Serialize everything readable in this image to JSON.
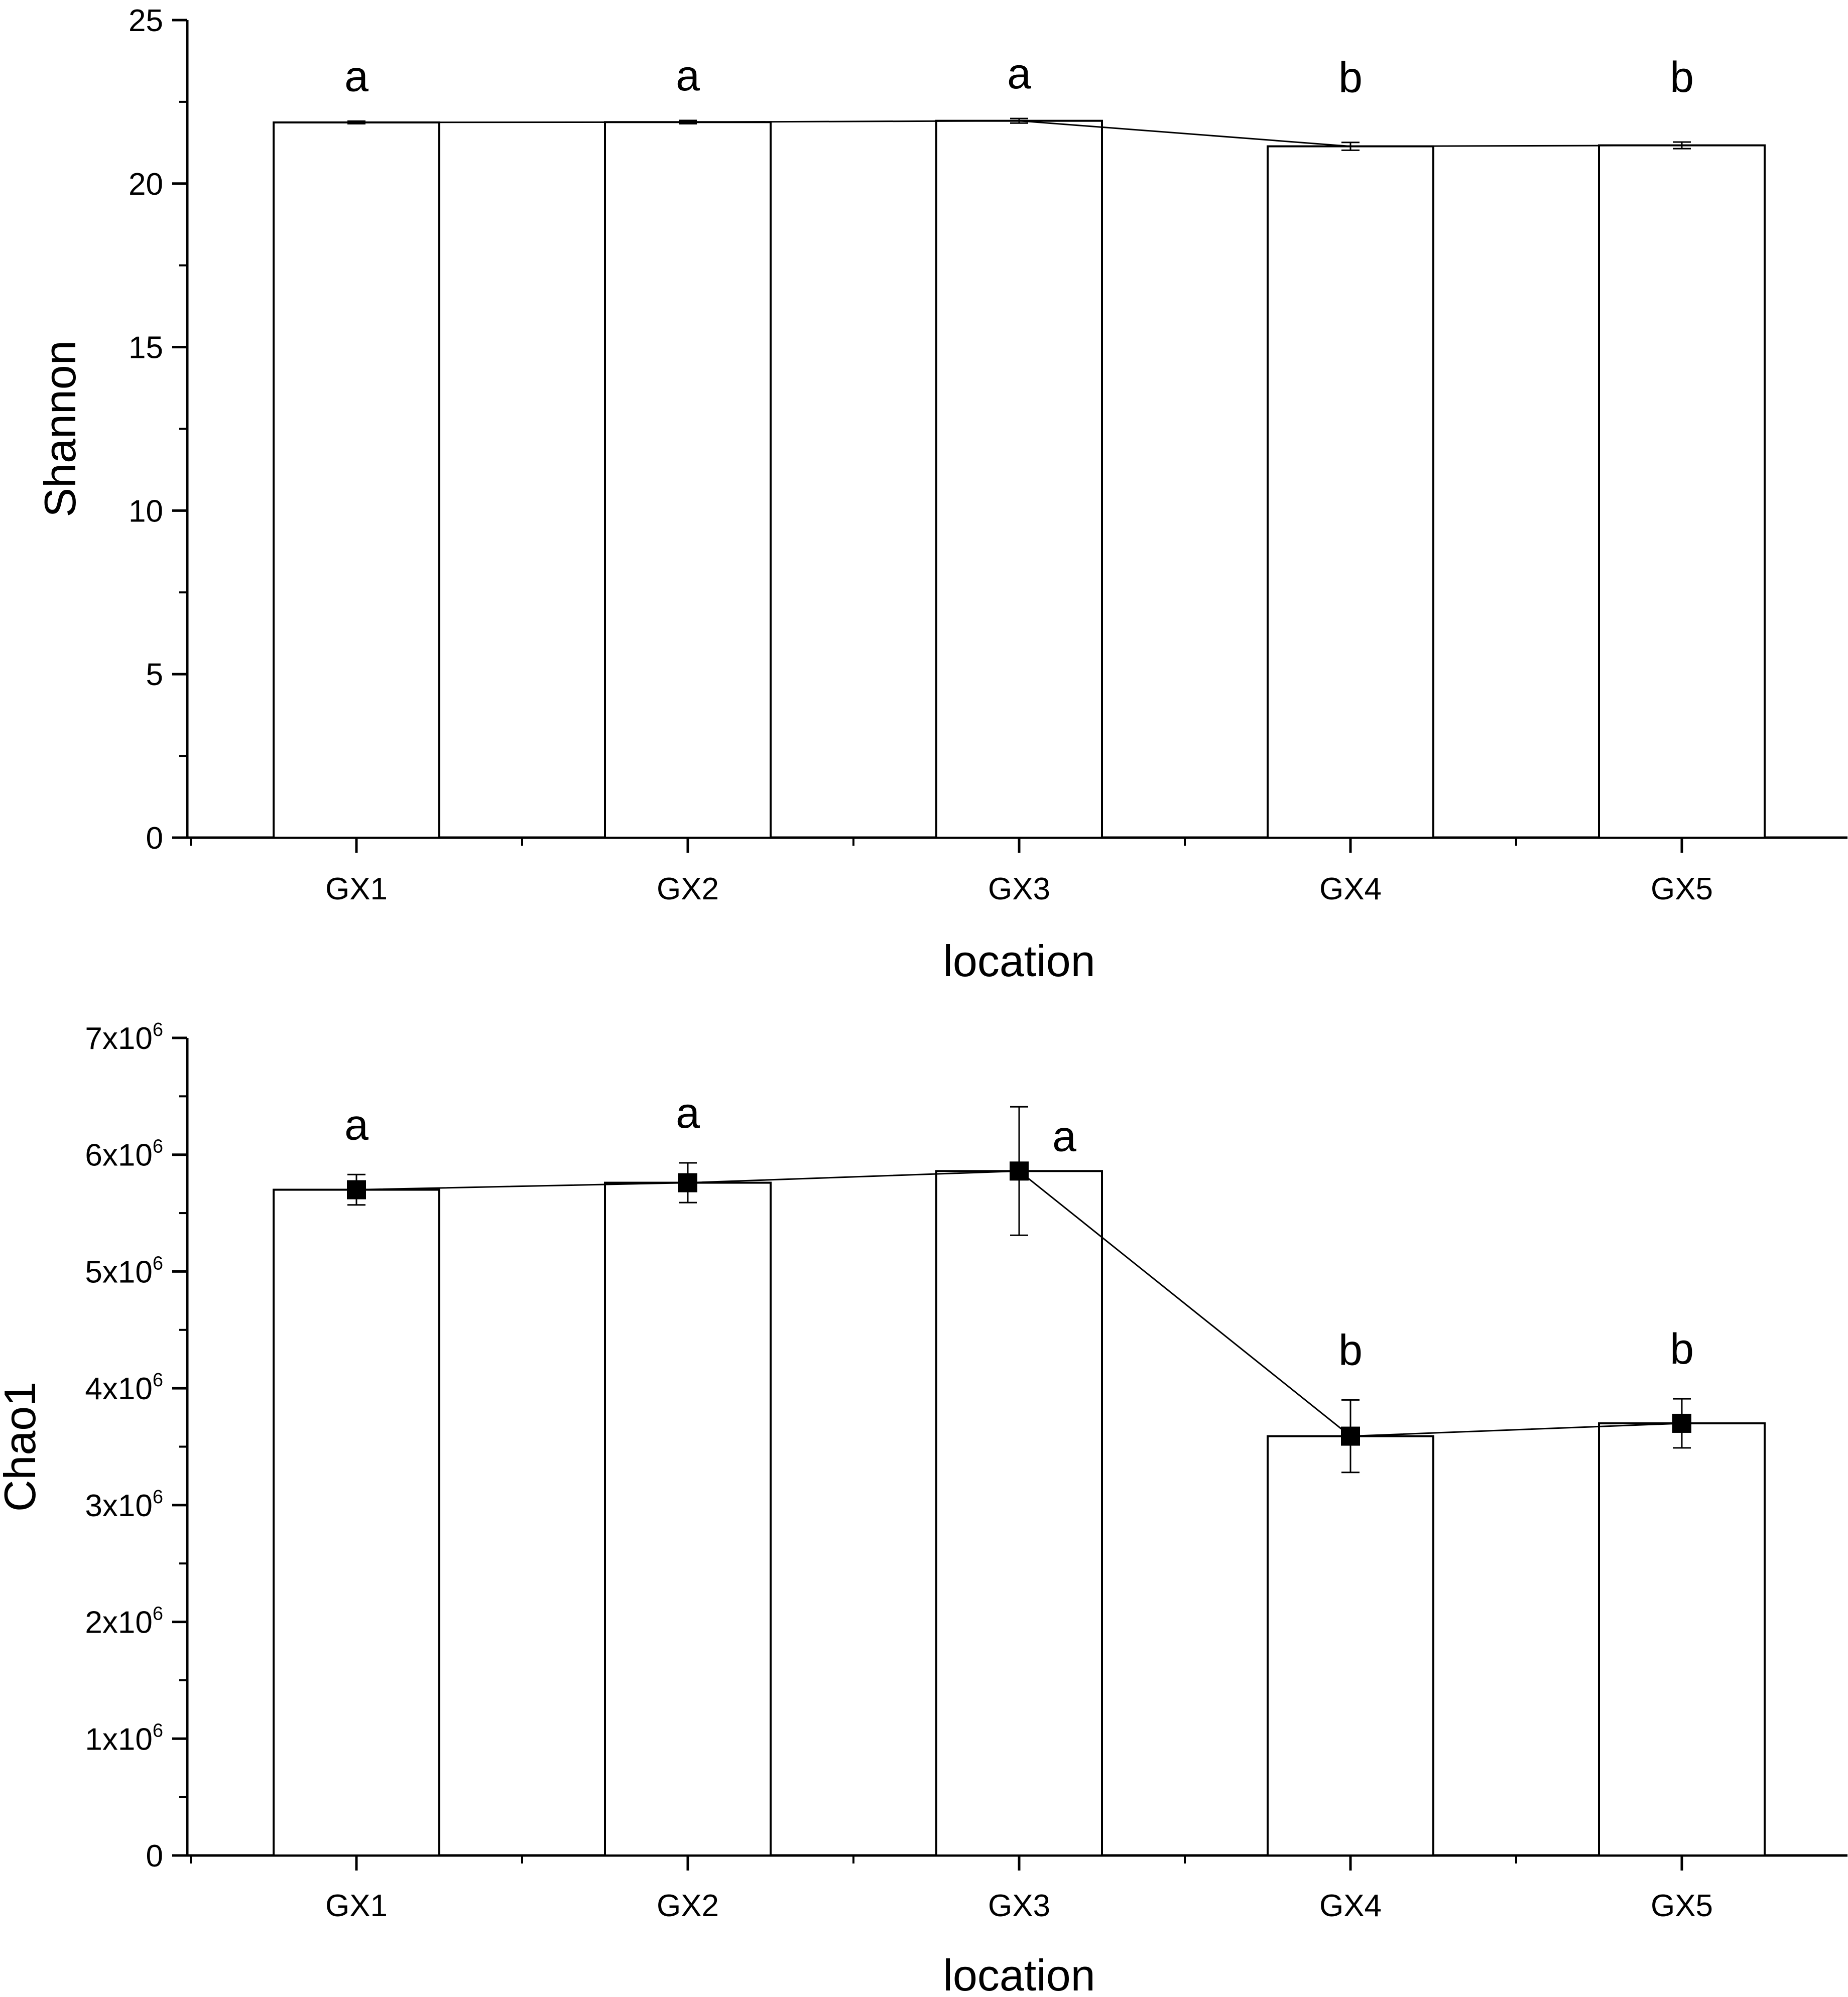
{
  "chart_data": [
    {
      "type": "bar",
      "xlabel": "location",
      "ylabel": "Shannon",
      "ylim": [
        0,
        25
      ],
      "yticks": [
        "0",
        "5",
        "10",
        "15",
        "20",
        "25"
      ],
      "categories": [
        "GX1",
        "GX2",
        "GX3",
        "GX4",
        "GX5"
      ],
      "values": [
        21.87,
        21.88,
        21.92,
        21.14,
        21.17
      ],
      "errors": [
        0.04,
        0.05,
        0.07,
        0.12,
        0.1
      ],
      "overlay_line": true,
      "point_markers": false,
      "significance": [
        "a",
        "a",
        "a",
        "b",
        "b"
      ]
    },
    {
      "type": "bar",
      "xlabel": "location",
      "ylabel": "Chao1",
      "ylim": [
        0,
        7000000
      ],
      "yticks": [
        {
          "mantissa": "0",
          "exp": ""
        },
        {
          "mantissa": "1x10",
          "exp": "6"
        },
        {
          "mantissa": "2x10",
          "exp": "6"
        },
        {
          "mantissa": "3x10",
          "exp": "6"
        },
        {
          "mantissa": "4x10",
          "exp": "6"
        },
        {
          "mantissa": "5x10",
          "exp": "6"
        },
        {
          "mantissa": "6x10",
          "exp": "6"
        },
        {
          "mantissa": "7x10",
          "exp": "6"
        }
      ],
      "categories": [
        "GX1",
        "GX2",
        "GX3",
        "GX4",
        "GX5"
      ],
      "values": [
        5700000,
        5760000,
        5860000,
        3590000,
        3700000
      ],
      "errors": [
        130000,
        170000,
        550000,
        310000,
        210000
      ],
      "overlay_line": true,
      "point_markers": true,
      "significance": [
        "a",
        "a",
        "a",
        "b",
        "b"
      ]
    }
  ]
}
